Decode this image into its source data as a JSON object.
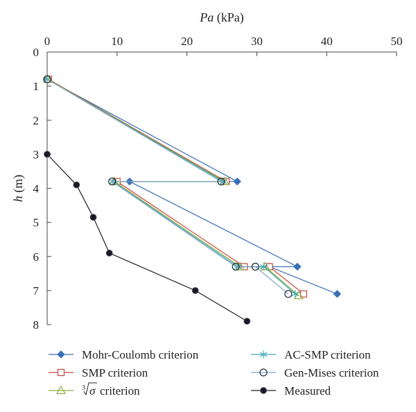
{
  "chart_data": {
    "type": "line",
    "xlabel": {
      "symbol": "Pa",
      "unit": " (kPa)"
    },
    "ylabel": {
      "symbol": "h",
      "unit": " (m)"
    },
    "xlim": [
      0,
      50
    ],
    "ylim": [
      0,
      8
    ],
    "y_inverted": true,
    "x_axis_position": "top",
    "x_ticks": [
      0,
      10,
      20,
      30,
      40,
      50
    ],
    "y_ticks": [
      0,
      1,
      2,
      3,
      4,
      5,
      6,
      7,
      8
    ],
    "grid": false,
    "legend_position": "bottom",
    "series": [
      {
        "name": "Mohr-Coulomb criterion",
        "color": "#3a6fb7",
        "marker": "diamond",
        "points": [
          [
            0,
            0.8
          ],
          [
            27.2,
            3.8
          ],
          [
            11.8,
            3.8
          ],
          [
            35.8,
            6.3
          ],
          [
            31.8,
            6.3
          ],
          [
            41.5,
            7.1
          ]
        ]
      },
      {
        "name": "SMP criterion",
        "color": "#c8453c",
        "marker": "square",
        "points": [
          [
            0.2,
            0.8
          ],
          [
            25.6,
            3.8
          ],
          [
            10,
            3.8
          ],
          [
            28.2,
            6.3
          ],
          [
            31.8,
            6.3
          ],
          [
            36.7,
            7.1
          ]
        ]
      },
      {
        "name": "criterion",
        "name_prefix_root": "3",
        "name_prefix_var": "σ",
        "color": "#8cb13a",
        "marker": "triangle",
        "points": [
          [
            0.1,
            0.8
          ],
          [
            25.4,
            3.8
          ],
          [
            9.6,
            3.8
          ],
          [
            27.6,
            6.3
          ],
          [
            31.2,
            6.3
          ],
          [
            36.0,
            7.15
          ]
        ]
      },
      {
        "name": "AC-SMP criterion",
        "color": "#3fa9b8",
        "marker": "star",
        "points": [
          [
            0,
            0.8
          ],
          [
            25.2,
            3.8
          ],
          [
            9.4,
            3.8
          ],
          [
            27.3,
            6.3
          ],
          [
            31.0,
            6.3
          ],
          [
            35.5,
            7.1
          ]
        ]
      },
      {
        "name": "Gen-Mises criterion",
        "color": "#7fa3cc",
        "marker": "circle",
        "points": [
          [
            0,
            0.8
          ],
          [
            24.9,
            3.8
          ],
          [
            9.3,
            3.8
          ],
          [
            27.0,
            6.3
          ],
          [
            29.8,
            6.3
          ],
          [
            34.5,
            7.1
          ]
        ]
      },
      {
        "name": "Measured",
        "color": "#1a1a2a",
        "marker": "filled-circle",
        "points": [
          [
            0,
            3.0
          ],
          [
            4.2,
            3.9
          ],
          [
            6.6,
            4.85
          ],
          [
            8.9,
            5.9
          ],
          [
            21.2,
            7.0
          ],
          [
            28.6,
            7.9
          ]
        ]
      }
    ]
  }
}
